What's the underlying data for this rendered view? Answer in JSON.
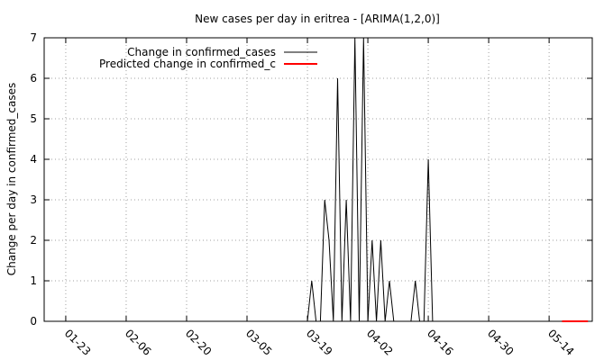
{
  "chart_data": {
    "type": "line",
    "title": "New cases per day in eritrea -  [ARIMA(1,2,0)]",
    "xlabel": "",
    "ylabel": "Change per day in confirmed_cases",
    "ylim": [
      0,
      7
    ],
    "xlim": [
      "2020-01-18",
      "2020-05-24"
    ],
    "yticks": [
      0,
      1,
      2,
      3,
      4,
      5,
      6,
      7
    ],
    "xticks": [
      {
        "date": "2020-01-23",
        "label": "01-23"
      },
      {
        "date": "2020-02-06",
        "label": "02-06"
      },
      {
        "date": "2020-02-20",
        "label": "02-20"
      },
      {
        "date": "2020-03-05",
        "label": "03-05"
      },
      {
        "date": "2020-03-19",
        "label": "03-19"
      },
      {
        "date": "2020-04-02",
        "label": "04-02"
      },
      {
        "date": "2020-04-16",
        "label": "04-16"
      },
      {
        "date": "2020-04-30",
        "label": "04-30"
      },
      {
        "date": "2020-05-14",
        "label": "05-14"
      }
    ],
    "grid": true,
    "legend_position": "top-right",
    "series": [
      {
        "name": "Change in confirmed_cases",
        "color": "#000000",
        "x": [
          "2020-03-19",
          "2020-03-20",
          "2020-03-21",
          "2020-03-22",
          "2020-03-23",
          "2020-03-24",
          "2020-03-25",
          "2020-03-26",
          "2020-03-27",
          "2020-03-28",
          "2020-03-29",
          "2020-03-30",
          "2020-03-31",
          "2020-04-01",
          "2020-04-02",
          "2020-04-03",
          "2020-04-04",
          "2020-04-05",
          "2020-04-06",
          "2020-04-07",
          "2020-04-08",
          "2020-04-09",
          "2020-04-10",
          "2020-04-11",
          "2020-04-12",
          "2020-04-13",
          "2020-04-14",
          "2020-04-15",
          "2020-04-16",
          "2020-04-17",
          "2020-04-18",
          "2020-04-19"
        ],
        "y": [
          0,
          1,
          0,
          0,
          3,
          2,
          0,
          6,
          0,
          3,
          0,
          7,
          0,
          7,
          0,
          2,
          0,
          2,
          0,
          1,
          0,
          0,
          0,
          0,
          0,
          1,
          0,
          0,
          4,
          0,
          0,
          0
        ]
      },
      {
        "name": "Predicted change in confirmed_c",
        "color": "#ff0000",
        "x": [
          "2020-05-17",
          "2020-05-23"
        ],
        "y": [
          0,
          0
        ]
      }
    ]
  }
}
